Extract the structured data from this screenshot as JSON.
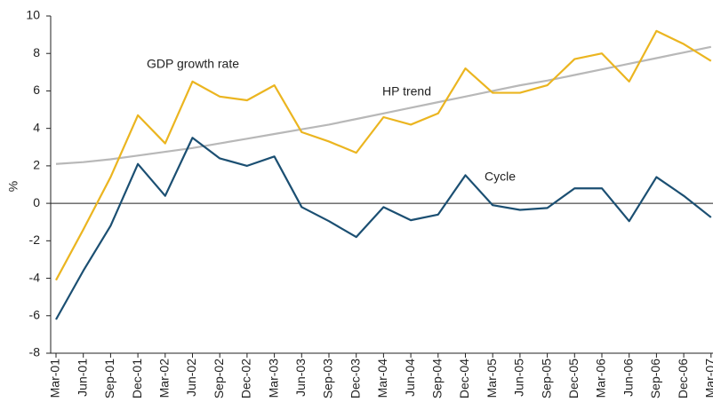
{
  "chart_data": {
    "type": "line",
    "y_label": "%",
    "categories": [
      "Mar-01",
      "Jun-01",
      "Sep-01",
      "Dec-01",
      "Mar-02",
      "Jun-02",
      "Sep-02",
      "Dec-02",
      "Mar-03",
      "Jun-03",
      "Sep-03",
      "Dec-03",
      "Mar-04",
      "Jun-04",
      "Sep-04",
      "Dec-04",
      "Mar-05",
      "Jun-05",
      "Sep-05",
      "Dec-05",
      "Mar-06",
      "Jun-06",
      "Sep-06",
      "Dec-06",
      "Mar-07"
    ],
    "series": [
      {
        "name": "GDP growth rate",
        "color": "#ebb520",
        "values": [
          -4.1,
          -1.4,
          1.4,
          4.7,
          3.2,
          6.5,
          5.7,
          5.5,
          6.3,
          3.8,
          3.3,
          2.7,
          4.6,
          4.2,
          4.8,
          7.2,
          5.9,
          5.9,
          6.3,
          7.7,
          8.0,
          6.5,
          9.2,
          8.5,
          7.6
        ]
      },
      {
        "name": "HP trend",
        "color": "#b8b8b8",
        "values": [
          2.1,
          2.2,
          2.35,
          2.55,
          2.75,
          2.95,
          3.2,
          3.45,
          3.7,
          3.95,
          4.2,
          4.5,
          4.8,
          5.1,
          5.4,
          5.7,
          6.0,
          6.3,
          6.55,
          6.85,
          7.15,
          7.45,
          7.75,
          8.05,
          8.35
        ]
      },
      {
        "name": "Cycle",
        "color": "#1b4f72",
        "values": [
          -6.2,
          -3.6,
          -1.2,
          2.1,
          0.4,
          3.5,
          2.4,
          2.0,
          2.5,
          -0.2,
          -0.95,
          -1.8,
          -0.2,
          -0.9,
          -0.6,
          1.5,
          -0.1,
          -0.35,
          -0.25,
          0.8,
          0.8,
          -0.95,
          1.4,
          0.4,
          -0.75
        ]
      }
    ],
    "ylim": [
      -8,
      10
    ],
    "yticks": [
      -8,
      -6,
      -4,
      -2,
      0,
      2,
      4,
      6,
      8,
      10
    ],
    "grid": false
  }
}
